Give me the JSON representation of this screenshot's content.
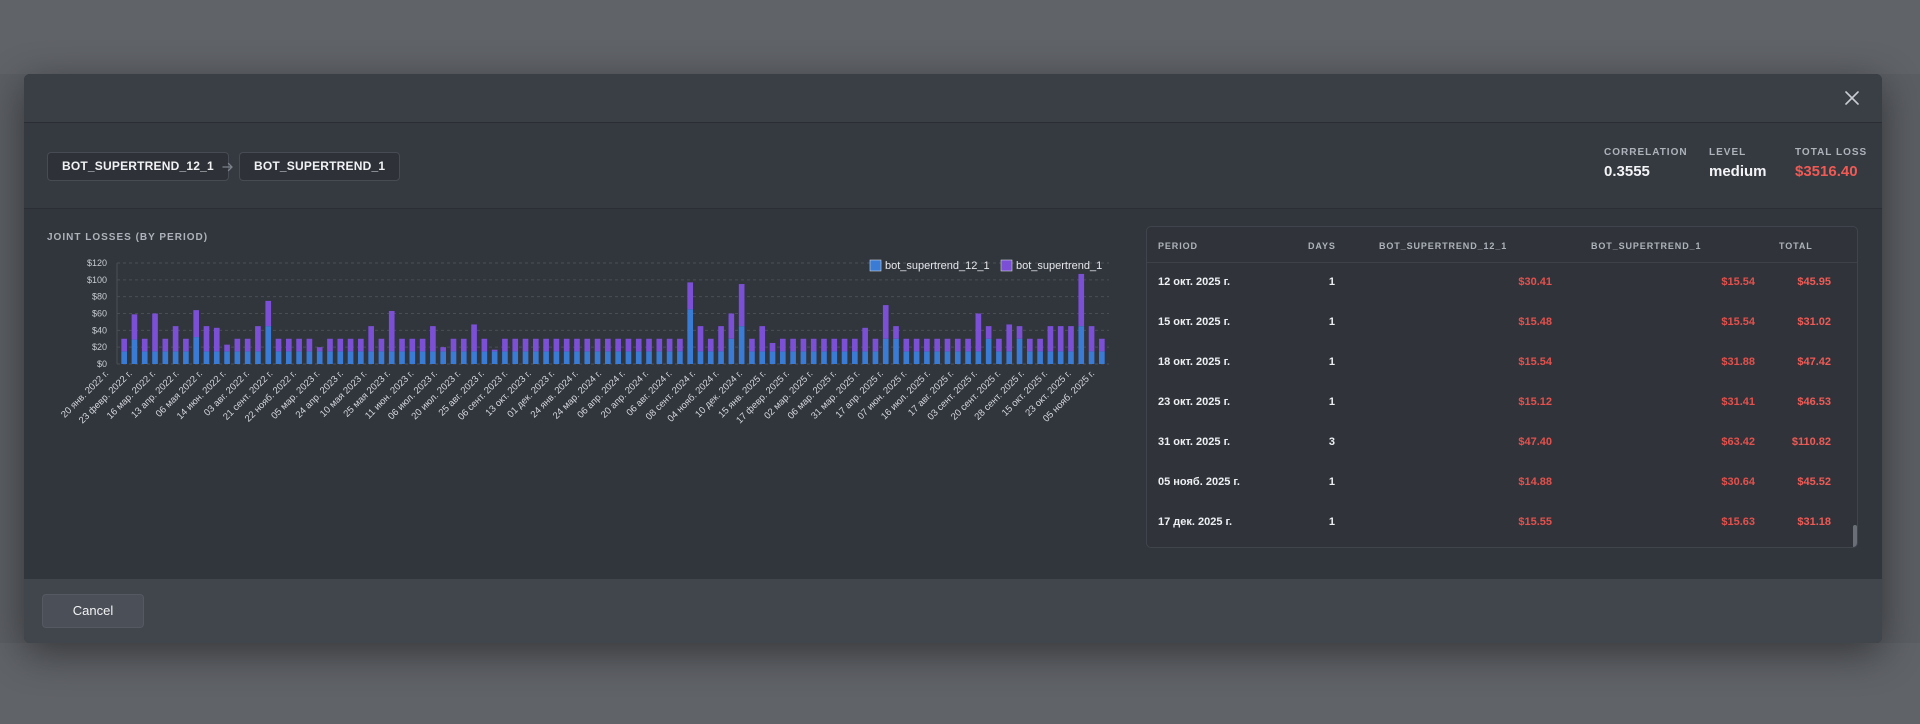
{
  "modal": {
    "close_icon": "close-icon",
    "cancel_label": "Cancel"
  },
  "pair": {
    "bot_a": "BOT_SUPERTREND_12_1",
    "bot_b": "BOT_SUPERTREND_1",
    "arrow_icon": "arrow-right-icon"
  },
  "stats": {
    "correlation_label": "CORRELATION",
    "correlation_value": "0.3555",
    "level_label": "LEVEL",
    "level_value": "medium",
    "total_loss_label": "TOTAL LOSS",
    "total_loss_value": "$3516.40",
    "loss_color": "#f05a55"
  },
  "chart_data": {
    "type": "bar",
    "stacked": true,
    "title": "JOINT LOSSES (BY PERIOD)",
    "legend_position": "top-right",
    "y_ticks": [
      "$0",
      "$20",
      "$40",
      "$60",
      "$80",
      "$100",
      "$120"
    ],
    "ylim": [
      0,
      120
    ],
    "grid": true,
    "x_tick_labels": [
      "20 янв. 2022 г.",
      "23 февр. 2022 г.",
      "16 мар. 2022 г.",
      "13 апр. 2022 г.",
      "06 мая 2022 г.",
      "14 июн. 2022 г.",
      "03 авг. 2022 г.",
      "21 сент. 2022 г.",
      "22 нояб. 2022 г.",
      "05 мар. 2023 г.",
      "24 апр. 2023 г.",
      "10 мая 2023 г.",
      "25 мая 2023 г.",
      "11 июн. 2023 г.",
      "06 июл. 2023 г.",
      "20 июл. 2023 г.",
      "25 авг. 2023 г.",
      "06 сент. 2023 г.",
      "13 окт. 2023 г.",
      "01 дек. 2023 г.",
      "24 янв. 2024 г.",
      "24 мар. 2024 г.",
      "06 апр. 2024 г.",
      "20 апр. 2024 г.",
      "06 авг. 2024 г.",
      "08 сент. 2024 г.",
      "04 нояб. 2024 г.",
      "10 дек. 2024 г.",
      "15 янв. 2025 г.",
      "17 февр. 2025 г.",
      "02 мар. 2025 г.",
      "06 мар. 2025 г.",
      "31 мар. 2025 г.",
      "17 апр. 2025 г.",
      "07 июн. 2025 г.",
      "16 июл. 2025 г.",
      "17 авг. 2025 г.",
      "03 сент. 2025 г.",
      "20 сент. 2025 г.",
      "28 сент. 2025 г.",
      "15 окт. 2025 г.",
      "23 окт. 2025 г.",
      "05 нояб. 2025 г."
    ],
    "series": [
      {
        "name": "bot_supertrend_12_1",
        "color": "#3a7bd5",
        "values": [
          15,
          29,
          15,
          15,
          15,
          15,
          15,
          32,
          15,
          15,
          15,
          15,
          15,
          15,
          45,
          15,
          15,
          15,
          15,
          15,
          15,
          15,
          15,
          15,
          15,
          15,
          15,
          15,
          15,
          15,
          15,
          15,
          15,
          15,
          15,
          15,
          15,
          15,
          15,
          15,
          15,
          15,
          15,
          15,
          15,
          15,
          15,
          15,
          15,
          15,
          15,
          15,
          15,
          15,
          15,
          65,
          15,
          15,
          15,
          30,
          45,
          15,
          15,
          15,
          15,
          15,
          15,
          15,
          15,
          15,
          15,
          15,
          15,
          15,
          30,
          30,
          15,
          15,
          15,
          15,
          15,
          15,
          15,
          15,
          30,
          15,
          15,
          30,
          15,
          15,
          15,
          15,
          15,
          45,
          15,
          15
        ]
      },
      {
        "name": "bot_supertrend_1",
        "color": "#7b4fd6",
        "values": [
          15,
          30,
          15,
          45,
          15,
          30,
          15,
          32,
          30,
          28,
          8,
          15,
          15,
          30,
          30,
          15,
          15,
          15,
          15,
          5,
          15,
          15,
          15,
          15,
          30,
          15,
          48,
          15,
          15,
          15,
          30,
          5,
          15,
          15,
          32,
          15,
          2,
          15,
          15,
          15,
          15,
          15,
          15,
          15,
          15,
          15,
          15,
          15,
          15,
          15,
          15,
          15,
          15,
          15,
          15,
          32,
          30,
          15,
          30,
          30,
          50,
          15,
          30,
          10,
          15,
          15,
          15,
          15,
          15,
          15,
          15,
          15,
          28,
          15,
          40,
          15,
          15,
          15,
          15,
          15,
          15,
          15,
          15,
          45,
          15,
          15,
          32,
          15,
          15,
          15,
          30,
          30,
          30,
          62,
          30,
          15
        ]
      }
    ]
  },
  "table": {
    "headers": [
      "PERIOD",
      "DAYS",
      "BOT_SUPERTREND_12_1",
      "BOT_SUPERTREND_1",
      "TOTAL"
    ],
    "rows": [
      {
        "period": "12 окт. 2025 г.",
        "days": "1",
        "a": "$30.41",
        "b": "$15.54",
        "total": "$45.95"
      },
      {
        "period": "15 окт. 2025 г.",
        "days": "1",
        "a": "$15.48",
        "b": "$15.54",
        "total": "$31.02"
      },
      {
        "period": "18 окт. 2025 г.",
        "days": "1",
        "a": "$15.54",
        "b": "$31.88",
        "total": "$47.42"
      },
      {
        "period": "23 окт. 2025 г.",
        "days": "1",
        "a": "$15.12",
        "b": "$31.41",
        "total": "$46.53"
      },
      {
        "period": "31 окт. 2025 г.",
        "days": "3",
        "a": "$47.40",
        "b": "$63.42",
        "total": "$110.82"
      },
      {
        "period": "05 нояб. 2025 г.",
        "days": "1",
        "a": "$14.88",
        "b": "$30.64",
        "total": "$45.52"
      },
      {
        "period": "17 дек. 2025 г.",
        "days": "1",
        "a": "$15.55",
        "b": "$15.63",
        "total": "$31.18"
      }
    ]
  }
}
